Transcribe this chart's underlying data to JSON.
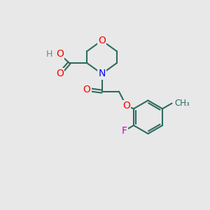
{
  "background_color": "#e8e8e8",
  "bond_color": "#2d6b5e",
  "atom_colors": {
    "O": "#ff0000",
    "N": "#0000ff",
    "F": "#cc00cc",
    "H": "#808080",
    "C": "#2d6b5e"
  },
  "font_size": 9,
  "line_width": 1.5
}
